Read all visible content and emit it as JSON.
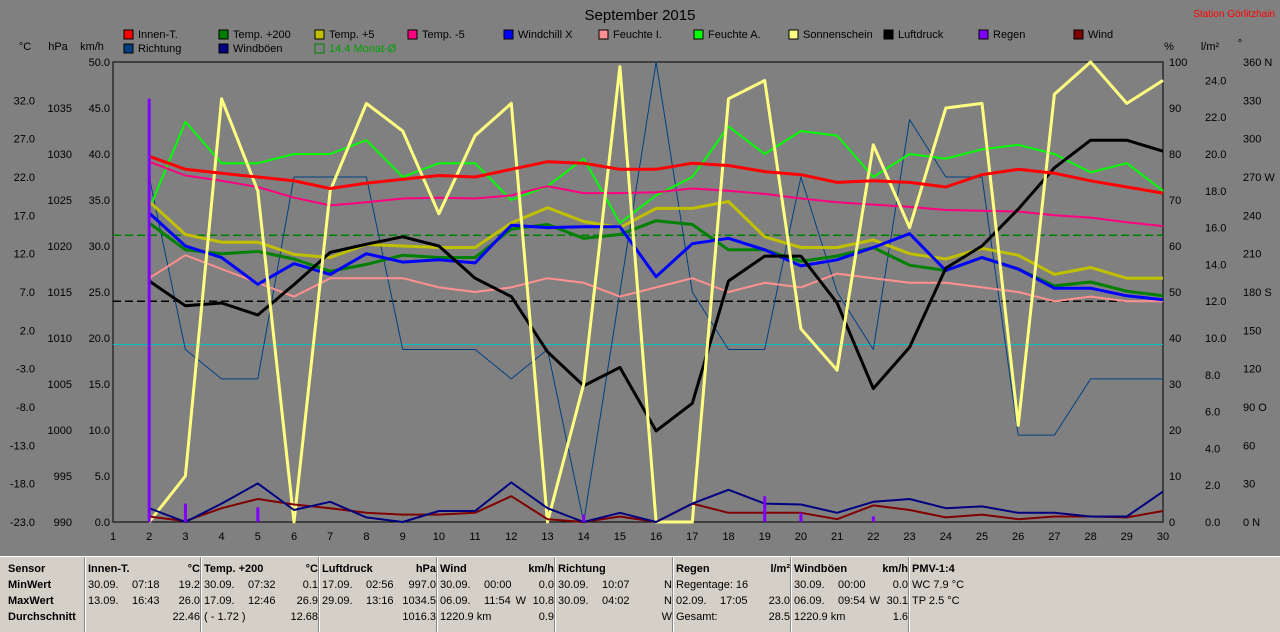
{
  "chart_data": {
    "type": "line",
    "title": "September 2015",
    "station": "Station Görlitzhain",
    "axes": {
      "celsius": {
        "unit": "°C",
        "ticks": [
          "32.0",
          "27.0",
          "22.0",
          "17.0",
          "12.0",
          "7.0",
          "2.0",
          "-3.0",
          "-8.0",
          "-13.0",
          "-18.0",
          "-23.0"
        ],
        "range": [
          -23,
          37
        ]
      },
      "hpa": {
        "unit": "hPa",
        "ticks": [
          "1035",
          "1030",
          "1025",
          "1020",
          "1015",
          "1010",
          "1005",
          "1000",
          "995",
          "990"
        ],
        "range": [
          990,
          1040
        ]
      },
      "kmh": {
        "unit": "km/h",
        "ticks": [
          "50.0",
          "45.0",
          "40.0",
          "35.0",
          "30.0",
          "25.0",
          "20.0",
          "15.0",
          "10.0",
          "5.0",
          "0.0"
        ],
        "range": [
          0,
          50
        ]
      },
      "percent": {
        "unit": "%",
        "ticks": [
          "100",
          "90",
          "80",
          "70",
          "60",
          "50",
          "40",
          "30",
          "20",
          "10",
          "0"
        ],
        "range": [
          0,
          100
        ]
      },
      "lm2": {
        "unit": "l/m²",
        "ticks": [
          "24.0",
          "22.0",
          "20.0",
          "18.0",
          "16.0",
          "14.0",
          "12.0",
          "10.0",
          "8.0",
          "6.0",
          "4.0",
          "2.0",
          "0.0"
        ],
        "range": [
          0,
          25
        ]
      },
      "deg": {
        "unit": "°",
        "ticks": [
          "360 N",
          "330",
          "300",
          "270 W",
          "240",
          "210",
          "180 S",
          "150",
          "120",
          "90 O",
          "60",
          "30",
          "0 N"
        ],
        "range": [
          0,
          360
        ]
      },
      "x_ticks": [
        "1",
        "2",
        "3",
        "4",
        "5",
        "6",
        "7",
        "8",
        "9",
        "10",
        "11",
        "12",
        "13",
        "14",
        "15",
        "16",
        "17",
        "18",
        "19",
        "20",
        "21",
        "22",
        "23",
        "24",
        "25",
        "26",
        "27",
        "28",
        "29",
        "30"
      ]
    },
    "legend": [
      {
        "name": "Innen-T.",
        "color": "#ff0000"
      },
      {
        "name": "Temp. +200",
        "color": "#008000"
      },
      {
        "name": "Temp. +5",
        "color": "#c0c000"
      },
      {
        "name": "Temp. -5",
        "color": "#ff0080"
      },
      {
        "name": "Windchill X",
        "color": "#0000ff"
      },
      {
        "name": "Feuchte I.",
        "color": "#ff9090"
      },
      {
        "name": "Feuchte A.",
        "color": "#00ff00"
      },
      {
        "name": "Sonnenschein",
        "color": "#ffff80"
      },
      {
        "name": "Luftdruck",
        "color": "#000000"
      },
      {
        "name": "Regen",
        "color": "#8000ff"
      },
      {
        "name": "Wind",
        "color": "#800000"
      },
      {
        "name": "Richtung",
        "color": "#004080"
      },
      {
        "name": "Windböen",
        "color": "#000080"
      },
      {
        "name": "14.4 Monat-Ø",
        "color": "#008000",
        "dashed": true
      }
    ],
    "series": [
      {
        "name": "Innen-T.",
        "axis": "celsius",
        "color": "#ff0000",
        "width": 3,
        "x": [
          2,
          3,
          4,
          5,
          6,
          7,
          8,
          9,
          10,
          11,
          12,
          13,
          14,
          15,
          16,
          17,
          18,
          19,
          20,
          21,
          22,
          23,
          24,
          25,
          26,
          27,
          28,
          29,
          30
        ],
        "values": [
          24.7,
          23.0,
          22.5,
          22.0,
          21.5,
          20.5,
          21.2,
          21.7,
          22.2,
          22.0,
          23.0,
          24.0,
          23.8,
          23.0,
          23.0,
          23.8,
          23.5,
          22.7,
          22.3,
          21.3,
          21.5,
          21.3,
          20.7,
          22.3,
          23.0,
          22.5,
          21.5,
          20.7,
          19.9
        ]
      },
      {
        "name": "Temp. +200",
        "axis": "celsius",
        "color": "#008000",
        "width": 3,
        "x": [
          2,
          3,
          4,
          5,
          6,
          7,
          8,
          9,
          10,
          11,
          12,
          13,
          14,
          15,
          16,
          17,
          18,
          19,
          20,
          21,
          22,
          23,
          24,
          25,
          26,
          27,
          28,
          29,
          30
        ],
        "values": [
          16.0,
          12.5,
          12.0,
          12.3,
          11.3,
          9.7,
          10.6,
          11.8,
          11.5,
          11.5,
          15.2,
          15.8,
          14.0,
          14.5,
          16.3,
          15.8,
          12.5,
          12.5,
          11.0,
          11.7,
          12.8,
          10.5,
          9.8,
          11.5,
          10.0,
          7.8,
          8.3,
          7.1,
          6.5
        ]
      },
      {
        "name": "Temp. +5",
        "axis": "celsius",
        "color": "#c0c000",
        "width": 3,
        "x": [
          2,
          3,
          4,
          5,
          6,
          7,
          8,
          9,
          10,
          11,
          12,
          13,
          14,
          15,
          16,
          17,
          18,
          19,
          20,
          21,
          22,
          23,
          24,
          25,
          26,
          27,
          28,
          29,
          30
        ],
        "values": [
          18.8,
          14.5,
          13.5,
          13.5,
          11.9,
          11.5,
          13.2,
          13.0,
          12.8,
          12.8,
          16.0,
          18.0,
          16.2,
          15.4,
          17.9,
          17.9,
          18.8,
          14.2,
          12.8,
          12.8,
          13.8,
          12.0,
          11.3,
          12.7,
          11.8,
          9.3,
          10.2,
          8.8,
          8.8
        ]
      },
      {
        "name": "Temp. -5",
        "axis": "celsius",
        "color": "#ff0080",
        "width": 2,
        "x": [
          2,
          3,
          4,
          5,
          6,
          7,
          8,
          9,
          10,
          11,
          12,
          13,
          14,
          15,
          16,
          17,
          18,
          19,
          20,
          21,
          22,
          23,
          24,
          25,
          26,
          27,
          28,
          29,
          30
        ],
        "values": [
          24.0,
          22.2,
          21.5,
          20.7,
          19.3,
          18.3,
          18.7,
          19.2,
          19.3,
          19.2,
          19.6,
          20.8,
          19.9,
          19.9,
          20.0,
          20.5,
          20.2,
          19.8,
          19.2,
          18.7,
          18.4,
          18.1,
          17.7,
          17.6,
          17.5,
          17.0,
          16.7,
          16.1,
          15.6
        ]
      },
      {
        "name": "Windchill X",
        "axis": "celsius",
        "color": "#0000ff",
        "width": 3,
        "x": [
          2,
          3,
          4,
          5,
          6,
          7,
          8,
          9,
          10,
          11,
          12,
          13,
          14,
          15,
          16,
          17,
          18,
          19,
          20,
          21,
          22,
          23,
          24,
          25,
          26,
          27,
          28,
          29,
          30
        ],
        "values": [
          17.3,
          13.0,
          11.5,
          8.0,
          10.7,
          9.3,
          12.0,
          10.9,
          11.2,
          10.8,
          15.7,
          15.4,
          15.5,
          15.5,
          9.0,
          13.3,
          14.0,
          12.5,
          10.4,
          11.2,
          12.8,
          14.6,
          9.8,
          11.5,
          10.0,
          7.5,
          7.5,
          6.5,
          6.0
        ]
      },
      {
        "name": "Feuchte I.",
        "axis": "percent",
        "color": "#ff9090",
        "width": 2,
        "x": [
          2,
          3,
          4,
          5,
          6,
          7,
          8,
          9,
          10,
          11,
          12,
          13,
          14,
          15,
          16,
          17,
          18,
          19,
          20,
          21,
          22,
          23,
          24,
          25,
          26,
          27,
          28,
          29,
          30
        ],
        "values": [
          53,
          58,
          55,
          52,
          49,
          53,
          53,
          53,
          51,
          50,
          51,
          53,
          52,
          49,
          51,
          53,
          50,
          52,
          51,
          54,
          53,
          52,
          52,
          51,
          50,
          48,
          49,
          48,
          48
        ]
      },
      {
        "name": "Feuchte A.",
        "axis": "percent",
        "color": "#00ff00",
        "width": 2,
        "x": [
          2,
          3,
          4,
          5,
          6,
          7,
          8,
          9,
          10,
          11,
          12,
          13,
          14,
          15,
          16,
          17,
          18,
          19,
          20,
          21,
          22,
          23,
          24,
          25,
          26,
          27,
          28,
          29,
          30
        ],
        "values": [
          68,
          87,
          78,
          78,
          80,
          80,
          83,
          75,
          78,
          78,
          70,
          73,
          79,
          65,
          71,
          75,
          86,
          80,
          85,
          84,
          75,
          80,
          79,
          81,
          82,
          80,
          76,
          78,
          72
        ]
      },
      {
        "name": "Sonnenschein",
        "axis": "percent",
        "color": "#ffff80",
        "width": 3,
        "x": [
          2,
          3,
          4,
          5,
          6,
          7,
          8,
          9,
          10,
          11,
          12,
          13,
          14,
          15,
          16,
          17,
          18,
          19,
          20,
          21,
          22,
          23,
          24,
          25,
          26,
          27,
          28,
          29,
          30
        ],
        "values": [
          0,
          10,
          92,
          72,
          0,
          72,
          91,
          85,
          67,
          84,
          91,
          0,
          30,
          99,
          0,
          0,
          92,
          96,
          42,
          33,
          82,
          64,
          90,
          91,
          21,
          93,
          100,
          91,
          96
        ]
      },
      {
        "name": "Luftdruck",
        "axis": "hpa",
        "color": "#000000",
        "width": 3,
        "x": [
          2,
          3,
          4,
          5,
          6,
          7,
          8,
          9,
          10,
          11,
          12,
          13,
          14,
          15,
          16,
          17,
          18,
          19,
          20,
          21,
          22,
          23,
          24,
          25,
          26,
          27,
          28,
          29,
          30
        ],
        "values": [
          1016.2,
          1013.5,
          1013.8,
          1012.5,
          1015.8,
          1019.3,
          1020.2,
          1021.0,
          1020.0,
          1016.5,
          1014.5,
          1008.5,
          1004.8,
          1006.8,
          999.9,
          1002.9,
          1016.2,
          1018.9,
          1018.9,
          1013.8,
          1004.5,
          1009.0,
          1017.6,
          1020.0,
          1024.0,
          1028.5,
          1031.5,
          1031.5,
          1030.3
        ]
      },
      {
        "name": "Regen",
        "axis": "lm2",
        "color": "#8000ff",
        "type": "bar",
        "x": [
          2,
          3,
          5,
          14,
          19,
          20,
          22
        ],
        "values": [
          23.0,
          1.0,
          0.8,
          0.4,
          1.4,
          0.5,
          0.3
        ]
      },
      {
        "name": "Wind",
        "axis": "kmh",
        "color": "#800000",
        "width": 2,
        "x": [
          2,
          3,
          4,
          5,
          6,
          7,
          8,
          9,
          10,
          11,
          12,
          13,
          14,
          15,
          16,
          17,
          18,
          19,
          20,
          21,
          22,
          23,
          24,
          25,
          26,
          27,
          28,
          29,
          30
        ],
        "values": [
          0.6,
          0.1,
          1.5,
          2.5,
          1.9,
          1.5,
          1.0,
          0.8,
          0.8,
          1.0,
          2.8,
          0.3,
          0.0,
          0.6,
          0.0,
          2.0,
          1.0,
          1.0,
          1.0,
          0.3,
          1.8,
          1.3,
          0.5,
          0.8,
          0.3,
          0.6,
          0.6,
          0.5,
          1.2
        ]
      },
      {
        "name": "Richtung",
        "axis": "deg",
        "color": "#004080",
        "width": 1,
        "x": [
          2,
          3,
          4,
          5,
          6,
          7,
          8,
          9,
          10,
          11,
          12,
          13,
          14,
          15,
          16,
          17,
          18,
          19,
          20,
          21,
          22,
          23,
          24,
          25,
          26,
          27,
          28,
          29,
          30
        ],
        "values": [
          270,
          135,
          112,
          112,
          270,
          270,
          270,
          135,
          135,
          135,
          112,
          135,
          0,
          180,
          360,
          180,
          135,
          135,
          270,
          180,
          135,
          315,
          270,
          270,
          68,
          68,
          112,
          112,
          112
        ]
      },
      {
        "name": "Windböen",
        "axis": "kmh",
        "color": "#000080",
        "width": 2,
        "x": [
          2,
          3,
          4,
          5,
          6,
          7,
          8,
          9,
          10,
          11,
          12,
          13,
          14,
          15,
          16,
          17,
          18,
          19,
          20,
          21,
          22,
          23,
          24,
          25,
          26,
          27,
          28,
          29,
          30
        ],
        "values": [
          1.5,
          0.0,
          2.0,
          4.2,
          1.3,
          2.2,
          0.5,
          0.0,
          1.2,
          1.2,
          4.3,
          1.5,
          0.0,
          1.0,
          0.0,
          2.0,
          3.5,
          2.0,
          1.9,
          1.0,
          2.2,
          2.5,
          1.5,
          1.7,
          1.0,
          1.0,
          0.6,
          0.6,
          3.3
        ]
      }
    ],
    "reference_lines": [
      {
        "name": "14.4 Monat-Ø",
        "axis": "celsius",
        "value": 14.4,
        "color": "#008000",
        "dash": true
      },
      {
        "axis": "hpa",
        "value": 1014.0,
        "color": "#000000",
        "dash": true
      },
      {
        "axis": "kmh",
        "value": 19.3,
        "color": "#00c0c0",
        "dash": false
      }
    ],
    "grid": false
  },
  "stats": {
    "row_labels": [
      "Sensor",
      "MinWert",
      "MaxWert",
      "Durchschnitt"
    ],
    "groups": [
      {
        "title": "Innen-T.",
        "unit": "°C",
        "rows": [
          [
            "30.09.",
            "07:18",
            "",
            "19.2"
          ],
          [
            "13.09.",
            "16:43",
            "",
            "26.0"
          ],
          [
            "",
            "",
            "",
            "22.46"
          ]
        ]
      },
      {
        "title": "Temp. +200",
        "unit": "°C",
        "rows": [
          [
            "30.09.",
            "07:32",
            "",
            "0.1"
          ],
          [
            "17.09.",
            "12:46",
            "",
            "26.9"
          ],
          [
            "( - 1.72 )",
            "",
            "",
            "12.68"
          ]
        ]
      },
      {
        "title": "Luftdruck",
        "unit": "hPa",
        "rows": [
          [
            "17.09.",
            "02:56",
            "",
            "997.0"
          ],
          [
            "29.09.",
            "13:16",
            "",
            "1034.5"
          ],
          [
            "",
            "",
            "",
            "1016.3"
          ]
        ]
      },
      {
        "title": "Wind",
        "unit": "km/h",
        "rows": [
          [
            "30.09.",
            "00:00",
            "",
            "0.0"
          ],
          [
            "06.09.",
            "11:54",
            "W",
            "10.8"
          ],
          [
            "1220.9 km",
            "",
            "",
            "0.9"
          ]
        ]
      },
      {
        "title": "Richtung",
        "unit": "",
        "rows": [
          [
            "30.09.",
            "10:07",
            "",
            "N"
          ],
          [
            "30.09.",
            "04:02",
            "",
            "N"
          ],
          [
            "",
            "",
            "",
            "W"
          ]
        ]
      },
      {
        "title": "Regen",
        "unit": "l/m²",
        "rows": [
          [
            "Regentage: 16",
            "",
            "",
            ""
          ],
          [
            "02.09.",
            "17:05",
            "",
            "23.0"
          ],
          [
            "Gesamt:",
            "",
            "",
            "28.5"
          ]
        ]
      },
      {
        "title": "Windböen",
        "unit": "km/h",
        "rows": [
          [
            "30.09.",
            "00:00",
            "",
            "0.0"
          ],
          [
            "06.09.",
            "09:54",
            "W",
            "30.1"
          ],
          [
            "1220.9 km",
            "",
            "",
            "1.6"
          ]
        ]
      },
      {
        "title": "PMV-1:4",
        "unit": "",
        "rows": [
          [
            "WC 7.9 °C",
            "",
            "",
            ""
          ],
          [
            "TP 2.5 °C",
            "",
            "",
            ""
          ],
          [
            "",
            "",
            "",
            ""
          ]
        ]
      }
    ]
  }
}
